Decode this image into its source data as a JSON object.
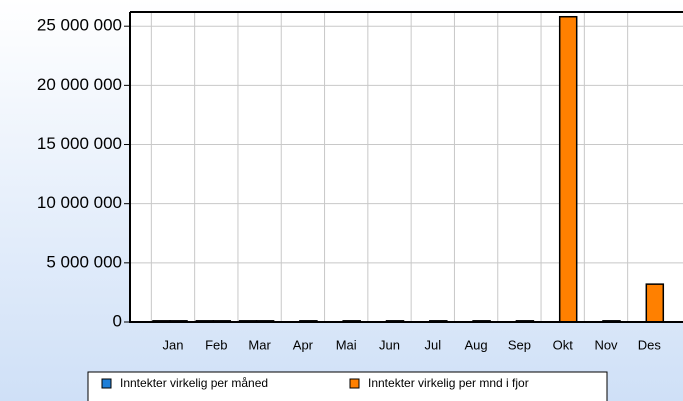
{
  "chart_data": {
    "type": "bar",
    "categories": [
      "Jan",
      "Feb",
      "Mar",
      "Apr",
      "Mai",
      "Jun",
      "Jul",
      "Aug",
      "Sep",
      "Okt",
      "Nov",
      "Des"
    ],
    "series": [
      {
        "name": "Inntekter virkelig per måned",
        "color": "#1f7fd8",
        "values": [
          100000,
          100000,
          100000,
          0,
          0,
          0,
          0,
          0,
          0,
          0,
          0,
          0
        ]
      },
      {
        "name": "Inntekter virkelig per mnd i fjor",
        "color": "#ff8000",
        "values": [
          100000,
          100000,
          100000,
          100000,
          100000,
          100000,
          100000,
          100000,
          100000,
          25800000,
          100000,
          3200000
        ]
      }
    ],
    "ylim": [
      0,
      26200000
    ],
    "yticks": [
      0,
      {
        "value": 5000000,
        "label": "5 000 000"
      },
      {
        "value": 10000000,
        "label": "10 000 000"
      },
      {
        "value": 15000000,
        "label": "15 000 000"
      },
      {
        "value": 20000000,
        "label": "20 000 000"
      },
      {
        "value": 25000000,
        "label": "25 000 000"
      }
    ],
    "grid": true
  }
}
